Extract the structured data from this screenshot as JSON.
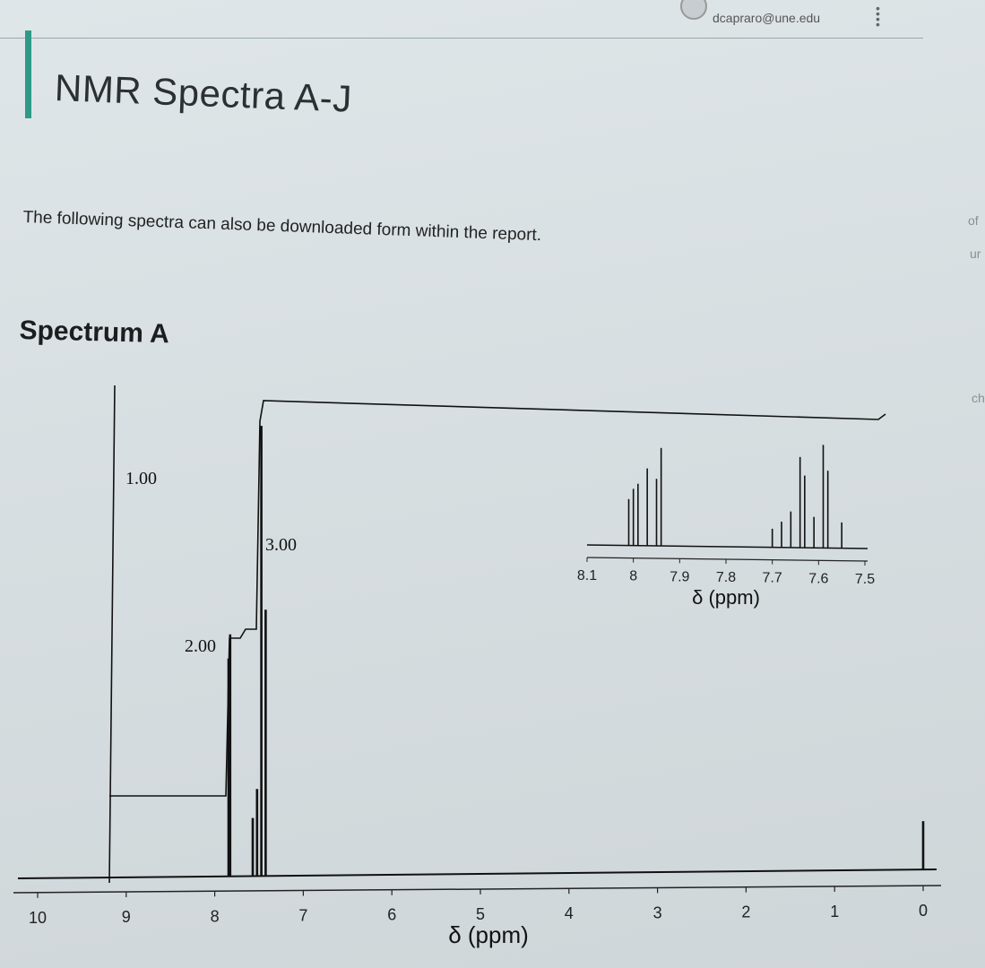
{
  "header": {
    "email": "dcapraro@une.edu",
    "menu_icon": "vertical-dots-icon"
  },
  "page": {
    "title": "NMR Spectra A-J",
    "description": "The following spectra can also be downloaded form within the report.",
    "spectrum_label": "Spectrum A",
    "edge_text": [
      "of",
      "ur",
      "ch"
    ]
  },
  "chart_data": [
    {
      "type": "line",
      "title": "",
      "xlabel": "δ (ppm)",
      "ylabel": "",
      "xlim": [
        10,
        0
      ],
      "x_ticks": [
        "10",
        "9",
        "8",
        "7",
        "6",
        "5",
        "4",
        "3",
        "2",
        "1",
        "0"
      ],
      "integrals": [
        {
          "label": "1.00",
          "x": 9.0
        },
        {
          "label": "2.00",
          "x": 8.0
        },
        {
          "label": "3.00",
          "x": 7.6
        }
      ],
      "peaks": [
        {
          "x": 8.05,
          "height": 0.45
        },
        {
          "x": 8.02,
          "height": 0.5
        },
        {
          "x": 7.7,
          "height": 0.12
        },
        {
          "x": 7.66,
          "height": 0.18
        },
        {
          "x": 7.62,
          "height": 0.93
        },
        {
          "x": 7.58,
          "height": 0.55
        },
        {
          "x": 0.0,
          "height": 0.1
        }
      ]
    },
    {
      "type": "line",
      "title": "",
      "xlabel": "δ (ppm)",
      "ylabel": "",
      "xlim": [
        8.1,
        7.5
      ],
      "x_ticks": [
        "8.1",
        "8",
        "7.9",
        "7.8",
        "7.7",
        "7.6",
        "7.5"
      ],
      "peaks": [
        {
          "x": 8.01,
          "height": 0.45
        },
        {
          "x": 8.0,
          "height": 0.55
        },
        {
          "x": 7.99,
          "height": 0.6
        },
        {
          "x": 7.97,
          "height": 0.75
        },
        {
          "x": 7.95,
          "height": 0.65
        },
        {
          "x": 7.94,
          "height": 0.95
        },
        {
          "x": 7.7,
          "height": 0.18
        },
        {
          "x": 7.68,
          "height": 0.25
        },
        {
          "x": 7.66,
          "height": 0.35
        },
        {
          "x": 7.64,
          "height": 0.88
        },
        {
          "x": 7.63,
          "height": 0.7
        },
        {
          "x": 7.61,
          "height": 0.3
        },
        {
          "x": 7.59,
          "height": 1.0
        },
        {
          "x": 7.58,
          "height": 0.75
        },
        {
          "x": 7.55,
          "height": 0.25
        }
      ]
    }
  ]
}
